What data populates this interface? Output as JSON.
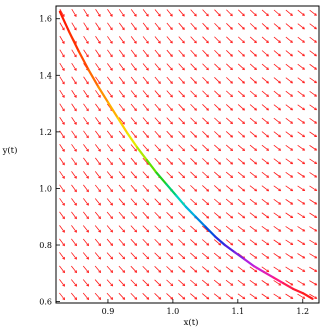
{
  "chart_data": {
    "type": "line",
    "title": "",
    "xlabel": "x(t)",
    "ylabel": "y(t)",
    "xlim": [
      0.82,
      1.225
    ],
    "ylim": [
      0.595,
      1.645
    ],
    "x_ticks": [
      "0.9",
      "1.0",
      "1.1",
      "1.2"
    ],
    "y_ticks": [
      "0.6",
      "0.8",
      "1.0",
      "1.2",
      "1.4",
      "1.6"
    ],
    "x_tick_values": [
      0.9,
      1.0,
      1.1,
      1.2
    ],
    "y_tick_values": [
      0.6,
      0.8,
      1.0,
      1.2,
      1.4,
      1.6
    ],
    "grid": false,
    "direction_field": {
      "color": "#ff1a1a",
      "columns": 22,
      "rows": 22,
      "direction": "down-right"
    },
    "series": [
      {
        "x": [
          0.826,
          0.84,
          0.855,
          0.87,
          0.885,
          0.9,
          0.915,
          0.93,
          0.945,
          0.96,
          0.975,
          0.99,
          1.005,
          1.02,
          1.035,
          1.05,
          1.065,
          1.08,
          1.095,
          1.11,
          1.125,
          1.14,
          1.155,
          1.17,
          1.185,
          1.2,
          1.215
        ],
        "y": [
          1.625,
          1.555,
          1.485,
          1.42,
          1.36,
          1.305,
          1.25,
          1.195,
          1.145,
          1.1,
          1.055,
          1.015,
          0.975,
          0.935,
          0.9,
          0.865,
          0.83,
          0.8,
          0.775,
          0.75,
          0.725,
          0.705,
          0.685,
          0.665,
          0.645,
          0.63,
          0.61
        ],
        "colors": [
          "#ff1a00",
          "#ff3000",
          "#ff4a00",
          "#ff6a00",
          "#ff9000",
          "#ffb000",
          "#ffd000",
          "#e8e800",
          "#b0e800",
          "#60e000",
          "#20d020",
          "#00d070",
          "#00d0c0",
          "#00b0e0",
          "#0080e0",
          "#0050e0",
          "#2030e0",
          "#5020e0",
          "#8020e0",
          "#b020e0",
          "#d020d0",
          "#e020b0",
          "#ff1a80",
          "#ff1a50",
          "#ff1a30",
          "#ff1a1a",
          "#ff1a00"
        ]
      }
    ]
  }
}
